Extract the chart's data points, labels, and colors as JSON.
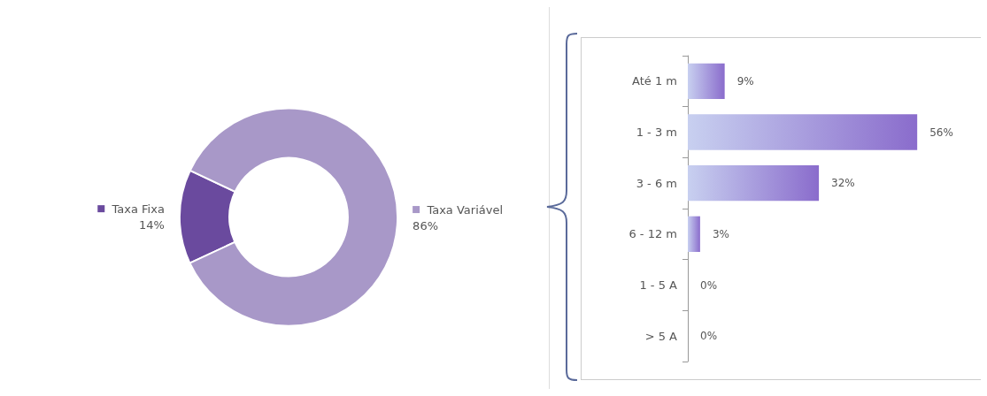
{
  "chart_data": [
    {
      "type": "donut",
      "categories": [
        "Taxa Fixa",
        "Taxa Variável"
      ],
      "values": [
        14,
        86
      ],
      "value_labels": [
        "14%",
        "86%"
      ],
      "colors": [
        "#6a4a9e",
        "#a898c8"
      ],
      "legend": "top right"
    },
    {
      "type": "bar",
      "orientation": "horizontal",
      "categories": [
        "Até 1 m",
        "1 - 3 m",
        "3 - 6 m",
        "6 - 12 m",
        "1 - 5 A",
        "> 5 A"
      ],
      "values": [
        9,
        56,
        32,
        3,
        0,
        0
      ],
      "value_labels": [
        "9%",
        "56%",
        "32%",
        "3%",
        "0%",
        "0%"
      ],
      "color": "#8a6ccc",
      "tick_labels": "y"
    }
  ]
}
